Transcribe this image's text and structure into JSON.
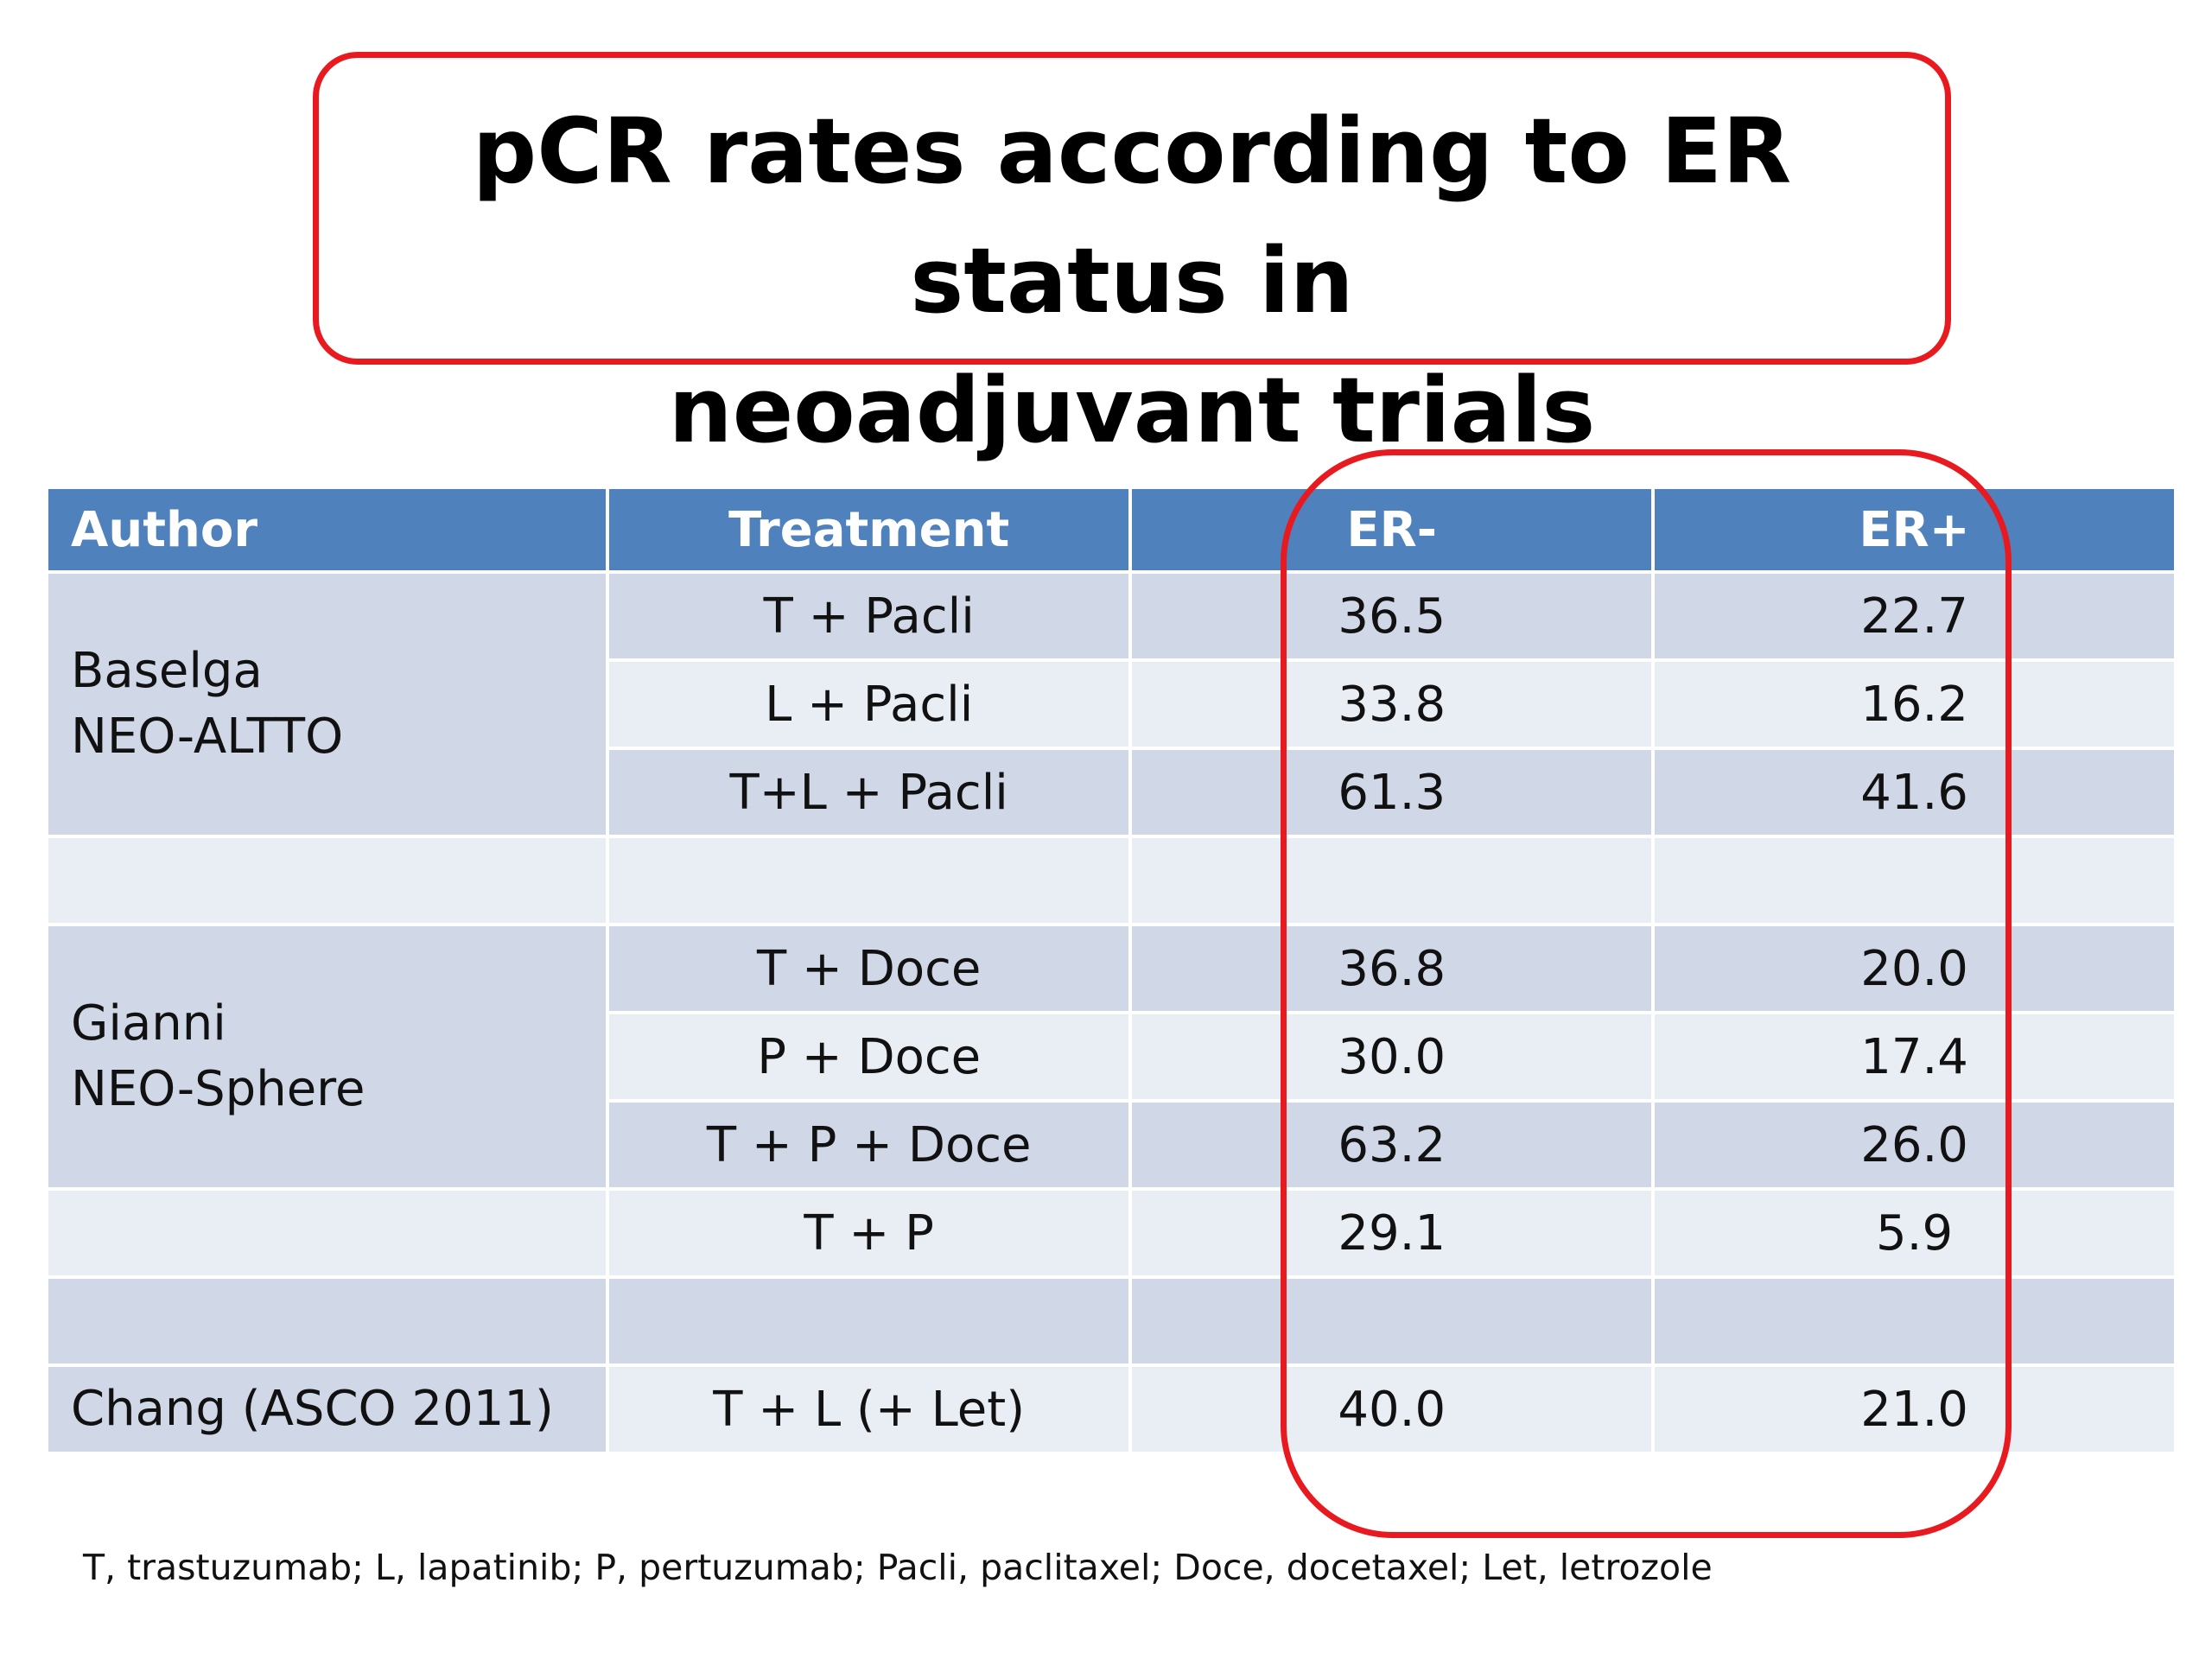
{
  "slide": {
    "title_line1": "pCR rates according to ER status in",
    "title_line2": "neoadjuvant trials",
    "footnote": "T, trastuzumab; L, lapatinib; P, pertuzumab; Pacli, paclitaxel; Doce, docetaxel; Let, letrozole",
    "colors": {
      "header_bg": "#4f81bd",
      "row_dark": "#d0d8e8",
      "row_light": "#e9edf4",
      "highlight": "#e8191f"
    }
  },
  "table": {
    "headers": [
      "Author",
      "Treatment",
      "ER-",
      "ER+"
    ],
    "groups": {
      "baselga": {
        "author_line1": "Baselga",
        "author_line2": "NEO-ALTTO"
      },
      "gianni": {
        "author_line1": "Gianni",
        "author_line2": "NEO-Sphere"
      },
      "chang": {
        "author": "Chang (ASCO 2011)"
      }
    },
    "rows": [
      {
        "treatment": "T + Pacli",
        "er_neg": "36.5",
        "er_pos": "22.7"
      },
      {
        "treatment": "L + Pacli",
        "er_neg": "33.8",
        "er_pos": "16.2"
      },
      {
        "treatment": "T+L + Pacli",
        "er_neg": "61.3",
        "er_pos": "41.6"
      },
      {
        "treatment": "T + Doce",
        "er_neg": "36.8",
        "er_pos": "20.0"
      },
      {
        "treatment": "P + Doce",
        "er_neg": "30.0",
        "er_pos": "17.4"
      },
      {
        "treatment": "T + P + Doce",
        "er_neg": "63.2",
        "er_pos": "26.0"
      },
      {
        "treatment": "T + P",
        "er_neg": "29.1",
        "er_pos": "5.9"
      },
      {
        "treatment": "T + L (+ Let)",
        "er_neg": "40.0",
        "er_pos": "21.0"
      }
    ]
  }
}
